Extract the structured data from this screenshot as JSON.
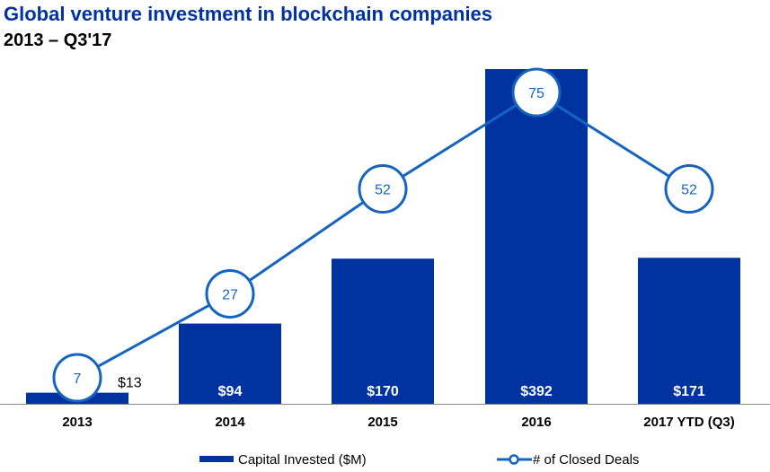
{
  "title": "Global venture investment in blockchain companies",
  "subtitle": "2013 – Q3'17",
  "colors": {
    "bar": "#0033a0",
    "line": "#1565c0",
    "marker_fill": "#ffffff",
    "marker_text": "#1565c0",
    "bar_label_inside": "#ffffff",
    "bar_label_outside": "#000000",
    "axis": "#888888"
  },
  "chart_data": {
    "type": "bar",
    "categories": [
      "2013",
      "2014",
      "2015",
      "2016",
      "2017 YTD (Q3)"
    ],
    "series": [
      {
        "name": "Capital Invested ($M)",
        "type": "bar",
        "values": [
          13,
          94,
          170,
          392,
          171
        ],
        "labels": [
          "$13",
          "$94",
          "$170",
          "$392",
          "$171"
        ]
      },
      {
        "name": "# of Closed Deals",
        "type": "line",
        "values": [
          7,
          27,
          52,
          75,
          52
        ],
        "labels": [
          "7",
          "27",
          "52",
          "75",
          "52"
        ]
      }
    ],
    "legend": {
      "position": "bottom",
      "entries": [
        "Capital Invested ($M)",
        "# of Closed Deals"
      ]
    },
    "grid": false
  }
}
